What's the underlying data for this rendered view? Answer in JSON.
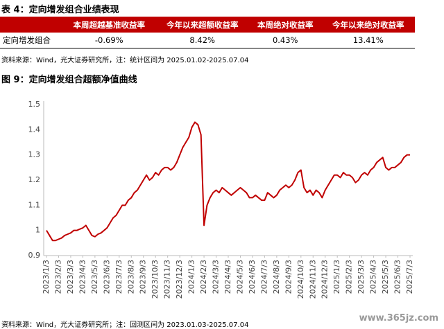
{
  "table_title": "表 4：定向增发组合业绩表现",
  "table": {
    "header": [
      "本周超越基准收益率",
      "今年以来超额收益率",
      "本周绝对收益率",
      "今年以来绝对收益率"
    ],
    "rows": [
      [
        "定向增发组合",
        "-0.69%",
        "8.42%",
        "0.43%",
        "13.41%"
      ]
    ]
  },
  "table_note": "资料来源：Wind，光大证券研究所，注：统计区间为 2025.01.02-2025.07.04",
  "chart_data": {
    "type": "line",
    "title": "图 9：定向增发组合超额净值曲线",
    "color": "#c00000",
    "categories": [
      "2023/1/3",
      null,
      null,
      null,
      "2023/2/3",
      null,
      null,
      null,
      "2023/3/3",
      null,
      null,
      null,
      "2023/4/3",
      null,
      null,
      null,
      "2023/5/3",
      null,
      null,
      null,
      "2023/6/3",
      null,
      null,
      null,
      "2023/7/3",
      null,
      null,
      null,
      "2023/8/3",
      null,
      null,
      null,
      "2023/9/3",
      null,
      null,
      null,
      "2023/10/3",
      null,
      null,
      null,
      "2023/11/3",
      null,
      null,
      null,
      "2023/12/3",
      null,
      null,
      null,
      "2024/1/3",
      null,
      null,
      null,
      "2024/2/3",
      null,
      null,
      null,
      "2024/3/3",
      null,
      null,
      null,
      "2024/4/3",
      null,
      null,
      null,
      "2024/5/3",
      null,
      null,
      null,
      "2024/6/3",
      null,
      null,
      null,
      "2024/7/3",
      null,
      null,
      null,
      "2024/8/3",
      null,
      null,
      null,
      "2024/9/3",
      null,
      null,
      null,
      "2024/10/3",
      null,
      null,
      null,
      "2024/11/3",
      null,
      null,
      null,
      "2024/12/3",
      null,
      null,
      null,
      "2025/1/3",
      null,
      null,
      null,
      "2025/2/3",
      null,
      null,
      null,
      "2025/3/3",
      null,
      null,
      null,
      "2025/4/3",
      null,
      null,
      null,
      "2025/5/3",
      null,
      null,
      null,
      "2025/6/3",
      null,
      null,
      null,
      "2025/7/3"
    ],
    "values": [
      1.0,
      0.98,
      0.96,
      0.96,
      0.965,
      0.97,
      0.98,
      0.985,
      0.99,
      1.0,
      1.0,
      1.005,
      1.01,
      1.02,
      1.0,
      0.98,
      0.975,
      0.985,
      0.99,
      1.0,
      1.01,
      1.03,
      1.05,
      1.06,
      1.08,
      1.1,
      1.1,
      1.12,
      1.13,
      1.15,
      1.16,
      1.18,
      1.2,
      1.22,
      1.2,
      1.21,
      1.23,
      1.22,
      1.24,
      1.25,
      1.25,
      1.24,
      1.25,
      1.27,
      1.3,
      1.33,
      1.35,
      1.37,
      1.41,
      1.43,
      1.42,
      1.38,
      1.02,
      1.1,
      1.13,
      1.15,
      1.16,
      1.15,
      1.17,
      1.16,
      1.15,
      1.14,
      1.15,
      1.16,
      1.17,
      1.16,
      1.15,
      1.13,
      1.13,
      1.14,
      1.13,
      1.12,
      1.12,
      1.15,
      1.14,
      1.13,
      1.14,
      1.16,
      1.17,
      1.18,
      1.17,
      1.18,
      1.2,
      1.23,
      1.24,
      1.17,
      1.15,
      1.16,
      1.14,
      1.16,
      1.15,
      1.13,
      1.16,
      1.18,
      1.2,
      1.22,
      1.22,
      1.21,
      1.23,
      1.22,
      1.22,
      1.21,
      1.19,
      1.2,
      1.22,
      1.23,
      1.22,
      1.24,
      1.25,
      1.27,
      1.28,
      1.29,
      1.25,
      1.24,
      1.25,
      1.25,
      1.26,
      1.27,
      1.29,
      1.3,
      1.3
    ],
    "ylim": [
      0.9,
      1.5
    ],
    "yticks": [
      0.9,
      1,
      1.1,
      1.2,
      1.3,
      1.4,
      1.5
    ],
    "grid": false
  },
  "chart_note": "资料来源：Wind，光大证券研究所；注：回测区间为 2023.01.03-2025.07.04",
  "watermark": "www.365jz.com"
}
